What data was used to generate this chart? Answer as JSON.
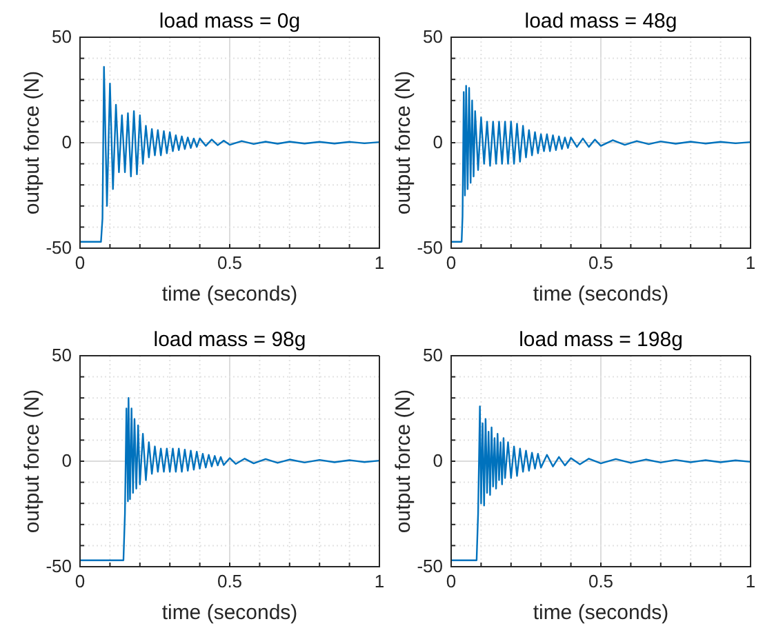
{
  "chart_data": [
    {
      "type": "line",
      "title": "load mass = 0g",
      "xlabel": "time (seconds)",
      "ylabel": "output force (N)",
      "xlim": [
        0,
        1
      ],
      "ylim": [
        -50,
        50
      ],
      "xticks": [
        0,
        {
          "value": 0.1,
          "label": null
        },
        {
          "value": 0.2,
          "label": null
        },
        {
          "value": 0.3,
          "label": null
        },
        {
          "value": 0.4,
          "label": null
        },
        0.5,
        {
          "value": 0.6,
          "label": null
        },
        {
          "value": 0.7,
          "label": null
        },
        {
          "value": 0.8,
          "label": null
        },
        {
          "value": 0.9,
          "label": null
        },
        1
      ],
      "yticks": [
        -50,
        {
          "value": -40,
          "label": null
        },
        {
          "value": -30,
          "label": null
        },
        {
          "value": -20,
          "label": null
        },
        {
          "value": -10,
          "label": null
        },
        0,
        {
          "value": 10,
          "label": null
        },
        {
          "value": 20,
          "label": null
        },
        {
          "value": 30,
          "label": null
        },
        {
          "value": 40,
          "label": null
        },
        50
      ],
      "grid": true,
      "series": [
        {
          "color": "#0072bd",
          "x": [
            0,
            0.07,
            0.075,
            0.08,
            0.09,
            0.1,
            0.11,
            0.12,
            0.13,
            0.14,
            0.15,
            0.16,
            0.17,
            0.18,
            0.19,
            0.2,
            0.21,
            0.22,
            0.23,
            0.24,
            0.25,
            0.26,
            0.27,
            0.28,
            0.29,
            0.3,
            0.31,
            0.32,
            0.33,
            0.34,
            0.35,
            0.36,
            0.37,
            0.38,
            0.39,
            0.4,
            0.42,
            0.44,
            0.46,
            0.48,
            0.5,
            0.54,
            0.58,
            0.62,
            0.66,
            0.7,
            0.75,
            0.8,
            0.85,
            0.9,
            0.95,
            1.0
          ],
          "values": [
            -47,
            -47,
            -36,
            36,
            -30,
            28,
            -22,
            18,
            -14,
            13,
            -14,
            14,
            -16,
            15,
            -15,
            13,
            -10,
            8,
            -7,
            6.5,
            -6,
            6,
            -6,
            5.5,
            -5,
            5,
            -4,
            3.5,
            -3.5,
            3,
            -3,
            2.5,
            -2.5,
            2,
            -2,
            2,
            -1.5,
            1.5,
            -1.2,
            1,
            -1,
            0.8,
            -0.6,
            0.5,
            -0.5,
            0.5,
            -0.4,
            0.4,
            -0.4,
            0.4,
            -0.3,
            0.3
          ]
        }
      ]
    },
    {
      "type": "line",
      "title": "load mass = 48g",
      "xlabel": "time (seconds)",
      "ylabel": "output force (N)",
      "xlim": [
        0,
        1
      ],
      "ylim": [
        -50,
        50
      ],
      "xticks": [
        0,
        {
          "value": 0.1,
          "label": null
        },
        {
          "value": 0.2,
          "label": null
        },
        {
          "value": 0.3,
          "label": null
        },
        {
          "value": 0.4,
          "label": null
        },
        0.5,
        {
          "value": 0.6,
          "label": null
        },
        {
          "value": 0.7,
          "label": null
        },
        {
          "value": 0.8,
          "label": null
        },
        {
          "value": 0.9,
          "label": null
        },
        1
      ],
      "yticks": [
        -50,
        {
          "value": -40,
          "label": null
        },
        {
          "value": -30,
          "label": null
        },
        {
          "value": -20,
          "label": null
        },
        {
          "value": -10,
          "label": null
        },
        0,
        {
          "value": 10,
          "label": null
        },
        {
          "value": 20,
          "label": null
        },
        {
          "value": 30,
          "label": null
        },
        {
          "value": 40,
          "label": null
        },
        50
      ],
      "grid": true,
      "series": [
        {
          "color": "#0072bd",
          "x": [
            0,
            0.035,
            0.038,
            0.042,
            0.046,
            0.05,
            0.055,
            0.06,
            0.065,
            0.07,
            0.075,
            0.08,
            0.09,
            0.1,
            0.11,
            0.12,
            0.13,
            0.14,
            0.15,
            0.16,
            0.17,
            0.18,
            0.19,
            0.2,
            0.21,
            0.22,
            0.23,
            0.24,
            0.25,
            0.26,
            0.27,
            0.28,
            0.29,
            0.3,
            0.31,
            0.32,
            0.33,
            0.34,
            0.35,
            0.36,
            0.37,
            0.38,
            0.39,
            0.4,
            0.42,
            0.44,
            0.46,
            0.48,
            0.5,
            0.54,
            0.58,
            0.62,
            0.66,
            0.7,
            0.75,
            0.8,
            0.85,
            0.9,
            0.95,
            1.0
          ],
          "values": [
            -47,
            -47,
            -35,
            24,
            -25,
            27,
            -22,
            26,
            -19,
            20,
            -16,
            15,
            -13,
            12,
            -10,
            10,
            -11,
            10,
            -10,
            10,
            -10,
            10,
            -10,
            10,
            -10,
            9,
            -9,
            8,
            -7,
            6,
            -6,
            5,
            -5,
            4,
            -4,
            4,
            -4,
            3.5,
            -3.5,
            3,
            -3,
            2.5,
            -2.5,
            2.5,
            -2,
            2,
            -2,
            1.5,
            -1.5,
            1.2,
            -1,
            0.8,
            -0.7,
            0.6,
            -0.5,
            0.5,
            -0.4,
            0.4,
            -0.3,
            0.3
          ]
        }
      ]
    },
    {
      "type": "line",
      "title": "load mass = 98g",
      "xlabel": "time (seconds)",
      "ylabel": "output force (N)",
      "xlim": [
        0,
        1
      ],
      "ylim": [
        -50,
        50
      ],
      "xticks": [
        0,
        {
          "value": 0.1,
          "label": null
        },
        {
          "value": 0.2,
          "label": null
        },
        {
          "value": 0.3,
          "label": null
        },
        {
          "value": 0.4,
          "label": null
        },
        0.5,
        {
          "value": 0.6,
          "label": null
        },
        {
          "value": 0.7,
          "label": null
        },
        {
          "value": 0.8,
          "label": null
        },
        {
          "value": 0.9,
          "label": null
        },
        1
      ],
      "yticks": [
        -50,
        {
          "value": -40,
          "label": null
        },
        {
          "value": -30,
          "label": null
        },
        {
          "value": -20,
          "label": null
        },
        {
          "value": -10,
          "label": null
        },
        0,
        {
          "value": 10,
          "label": null
        },
        {
          "value": 20,
          "label": null
        },
        {
          "value": 30,
          "label": null
        },
        {
          "value": 40,
          "label": null
        },
        50
      ],
      "grid": true,
      "series": [
        {
          "color": "#0072bd",
          "x": [
            0,
            0.145,
            0.15,
            0.155,
            0.16,
            0.162,
            0.167,
            0.172,
            0.177,
            0.182,
            0.188,
            0.194,
            0.2,
            0.21,
            0.22,
            0.23,
            0.24,
            0.25,
            0.26,
            0.27,
            0.28,
            0.29,
            0.3,
            0.31,
            0.32,
            0.33,
            0.34,
            0.35,
            0.36,
            0.37,
            0.38,
            0.39,
            0.4,
            0.41,
            0.42,
            0.43,
            0.44,
            0.45,
            0.46,
            0.47,
            0.48,
            0.5,
            0.52,
            0.55,
            0.58,
            0.62,
            0.66,
            0.7,
            0.75,
            0.8,
            0.85,
            0.9,
            0.95,
            1.0
          ],
          "values": [
            -47,
            -47,
            -25,
            25,
            -19,
            30,
            -18,
            25,
            -15,
            20,
            -13,
            17,
            -11,
            13,
            -9,
            9,
            -6,
            7,
            -5,
            6,
            -5,
            6,
            -5,
            6,
            -5,
            6,
            -5,
            5.5,
            -4.5,
            5,
            -4,
            4.5,
            -3.5,
            3.5,
            -3,
            3,
            -2.5,
            2.5,
            -2,
            2,
            -1.8,
            1.5,
            -1.3,
            1.2,
            -1,
            1,
            -0.8,
            0.8,
            -0.6,
            0.6,
            -0.5,
            0.5,
            -0.4,
            0.3
          ]
        }
      ]
    },
    {
      "type": "line",
      "title": "load mass = 198g",
      "xlabel": "time (seconds)",
      "ylabel": "output force (N)",
      "xlim": [
        0,
        1
      ],
      "ylim": [
        -50,
        50
      ],
      "xticks": [
        0,
        {
          "value": 0.1,
          "label": null
        },
        {
          "value": 0.2,
          "label": null
        },
        {
          "value": 0.3,
          "label": null
        },
        {
          "value": 0.4,
          "label": null
        },
        0.5,
        {
          "value": 0.6,
          "label": null
        },
        {
          "value": 0.7,
          "label": null
        },
        {
          "value": 0.8,
          "label": null
        },
        {
          "value": 0.9,
          "label": null
        },
        1
      ],
      "yticks": [
        -50,
        {
          "value": -40,
          "label": null
        },
        {
          "value": -30,
          "label": null
        },
        {
          "value": -20,
          "label": null
        },
        {
          "value": -10,
          "label": null
        },
        0,
        {
          "value": 10,
          "label": null
        },
        {
          "value": 20,
          "label": null
        },
        {
          "value": 30,
          "label": null
        },
        {
          "value": 40,
          "label": null
        },
        50
      ],
      "grid": true,
      "series": [
        {
          "color": "#0072bd",
          "x": [
            0,
            0.085,
            0.09,
            0.096,
            0.1,
            0.105,
            0.11,
            0.115,
            0.12,
            0.125,
            0.13,
            0.135,
            0.14,
            0.145,
            0.15,
            0.155,
            0.16,
            0.165,
            0.17,
            0.175,
            0.18,
            0.19,
            0.2,
            0.21,
            0.22,
            0.23,
            0.24,
            0.25,
            0.26,
            0.27,
            0.28,
            0.29,
            0.3,
            0.32,
            0.34,
            0.36,
            0.38,
            0.4,
            0.43,
            0.46,
            0.5,
            0.55,
            0.6,
            0.65,
            0.7,
            0.75,
            0.8,
            0.85,
            0.9,
            0.95,
            1.0
          ],
          "values": [
            -47,
            -47,
            -25,
            26,
            -20,
            18,
            -21,
            20,
            -15,
            14,
            -16,
            16,
            -12,
            11,
            -13,
            13,
            -9,
            9,
            -11,
            11,
            -8,
            9,
            -8,
            7,
            -7,
            6,
            -5,
            5,
            -4.5,
            4,
            -3.5,
            3.5,
            -3,
            3,
            -2.5,
            2,
            -2,
            1.5,
            -1.5,
            1.2,
            -1,
            1,
            -0.8,
            0.8,
            -0.6,
            0.6,
            -0.5,
            0.5,
            -0.5,
            0.4,
            -0.3
          ]
        }
      ]
    }
  ]
}
